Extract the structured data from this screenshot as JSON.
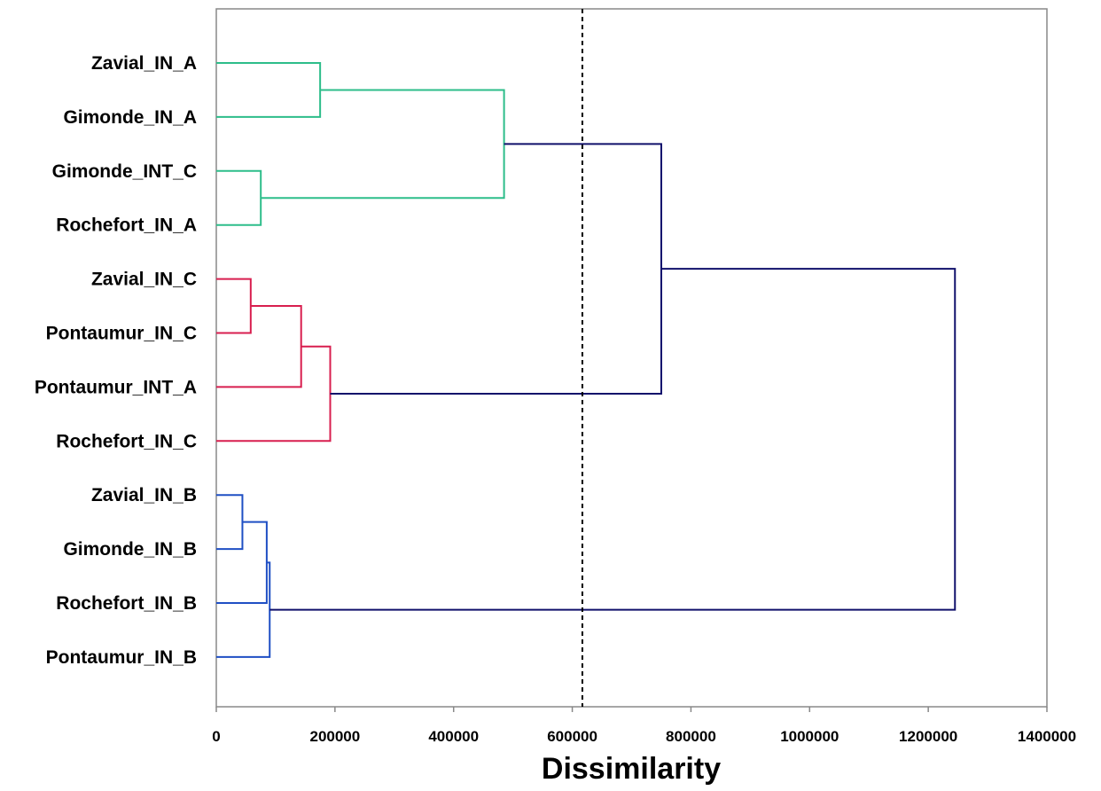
{
  "chart_data": {
    "type": "dendrogram",
    "orientation": "horizontal",
    "title": "",
    "xlabel": "Dissimilarity",
    "ylabel": "",
    "xlim": [
      0,
      1400000
    ],
    "xticks": [
      0,
      200000,
      400000,
      600000,
      800000,
      1000000,
      1200000,
      1400000
    ],
    "tick_labels": [
      "0",
      "200000",
      "400000",
      "600000",
      "800000",
      "1000000",
      "1200000",
      "1400000"
    ],
    "grid": false,
    "legend": "none",
    "cut_line": {
      "x": 617000,
      "style": "dashed",
      "color": "#000000"
    },
    "leaves": [
      {
        "label": "Zavial_IN_A",
        "cluster": "A"
      },
      {
        "label": "Gimonde_IN_A",
        "cluster": "A"
      },
      {
        "label": "Gimonde_INT_C",
        "cluster": "A"
      },
      {
        "label": "Rochefort_IN_A",
        "cluster": "A"
      },
      {
        "label": "Zavial_IN_C",
        "cluster": "C"
      },
      {
        "label": "Pontaumur_IN_C",
        "cluster": "C"
      },
      {
        "label": "Pontaumur_INT_A",
        "cluster": "C"
      },
      {
        "label": "Rochefort_IN_C",
        "cluster": "C"
      },
      {
        "label": "Zavial_IN_B",
        "cluster": "B"
      },
      {
        "label": "Gimonde_IN_B",
        "cluster": "B"
      },
      {
        "label": "Rochefort_IN_B",
        "cluster": "B"
      },
      {
        "label": "Pontaumur_IN_B",
        "cluster": "B"
      }
    ],
    "merges": [
      {
        "id": "m1",
        "left": "L0",
        "right": "L1",
        "height": 175000,
        "color": "A"
      },
      {
        "id": "m2",
        "left": "L2",
        "right": "L3",
        "height": 75000,
        "color": "A"
      },
      {
        "id": "m3",
        "left": "m1",
        "right": "m2",
        "height": 485000,
        "color": "A"
      },
      {
        "id": "m4",
        "left": "L4",
        "right": "L5",
        "height": 58000,
        "color": "C"
      },
      {
        "id": "m5",
        "left": "m4",
        "right": "L6",
        "height": 143000,
        "color": "C"
      },
      {
        "id": "m6",
        "left": "m5",
        "right": "L7",
        "height": 192000,
        "color": "C"
      },
      {
        "id": "m7",
        "left": "L8",
        "right": "L9",
        "height": 44000,
        "color": "B"
      },
      {
        "id": "m8",
        "left": "m7",
        "right": "L10",
        "height": 85000,
        "color": "B"
      },
      {
        "id": "m9",
        "left": "m8",
        "right": "L11",
        "height": 90000,
        "color": "B"
      },
      {
        "id": "m10",
        "left": "m3",
        "right": "m6",
        "height": 750000,
        "color": "root"
      },
      {
        "id": "m11",
        "left": "m10",
        "right": "m9",
        "height": 1245000,
        "color": "root"
      }
    ],
    "colors": {
      "A": "#2dbd8a",
      "C": "#d81e4f",
      "B": "#1f4fc4",
      "root": "#10106b",
      "axis": "#888888"
    }
  }
}
